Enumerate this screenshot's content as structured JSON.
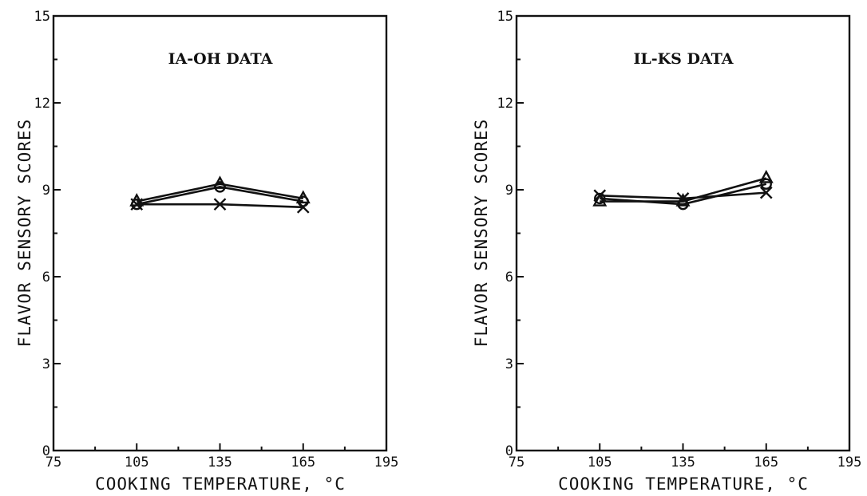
{
  "chart_data": [
    {
      "type": "line",
      "title": "IA-OH DATA",
      "xlabel": "COOKING TEMPERATURE, °C",
      "ylabel": "FLAVOR SENSORY SCORES",
      "xlim": [
        75,
        195
      ],
      "ylim": [
        0,
        15
      ],
      "xticks": [
        75,
        105,
        135,
        165,
        195
      ],
      "yticks": [
        0,
        3,
        6,
        9,
        12,
        15
      ],
      "xtick_labels": [
        "75",
        "105",
        "135",
        "165",
        "195"
      ],
      "ytick_labels": [
        "0",
        "3",
        "6",
        "9",
        "12",
        "15"
      ],
      "legend": "none",
      "grid": false,
      "series": [
        {
          "marker": "triangle",
          "x": [
            105,
            135,
            165
          ],
          "values": [
            8.6,
            9.2,
            8.7
          ]
        },
        {
          "marker": "circle",
          "x": [
            105,
            135,
            165
          ],
          "values": [
            8.5,
            9.1,
            8.6
          ]
        },
        {
          "marker": "x",
          "x": [
            105,
            135,
            165
          ],
          "values": [
            8.5,
            8.5,
            8.4
          ]
        }
      ]
    },
    {
      "type": "line",
      "title": "IL-KS DATA",
      "xlabel": "COOKING TEMPERATURE, °C",
      "ylabel": "FLAVOR SENSORY SCORES",
      "xlim": [
        75,
        195
      ],
      "ylim": [
        0,
        15
      ],
      "xticks": [
        75,
        105,
        135,
        165,
        195
      ],
      "yticks": [
        0,
        3,
        6,
        9,
        12,
        15
      ],
      "xtick_labels": [
        "75",
        "105",
        "135",
        "165",
        "195"
      ],
      "ytick_labels": [
        "0",
        "3",
        "6",
        "9",
        "12",
        "15"
      ],
      "legend": "none",
      "grid": false,
      "series": [
        {
          "marker": "triangle",
          "x": [
            105,
            135,
            165
          ],
          "values": [
            8.6,
            8.6,
            9.4
          ]
        },
        {
          "marker": "circle",
          "x": [
            105,
            135,
            165
          ],
          "values": [
            8.7,
            8.5,
            9.2
          ]
        },
        {
          "marker": "x",
          "x": [
            105,
            135,
            165
          ],
          "values": [
            8.8,
            8.7,
            8.9
          ]
        }
      ]
    }
  ]
}
